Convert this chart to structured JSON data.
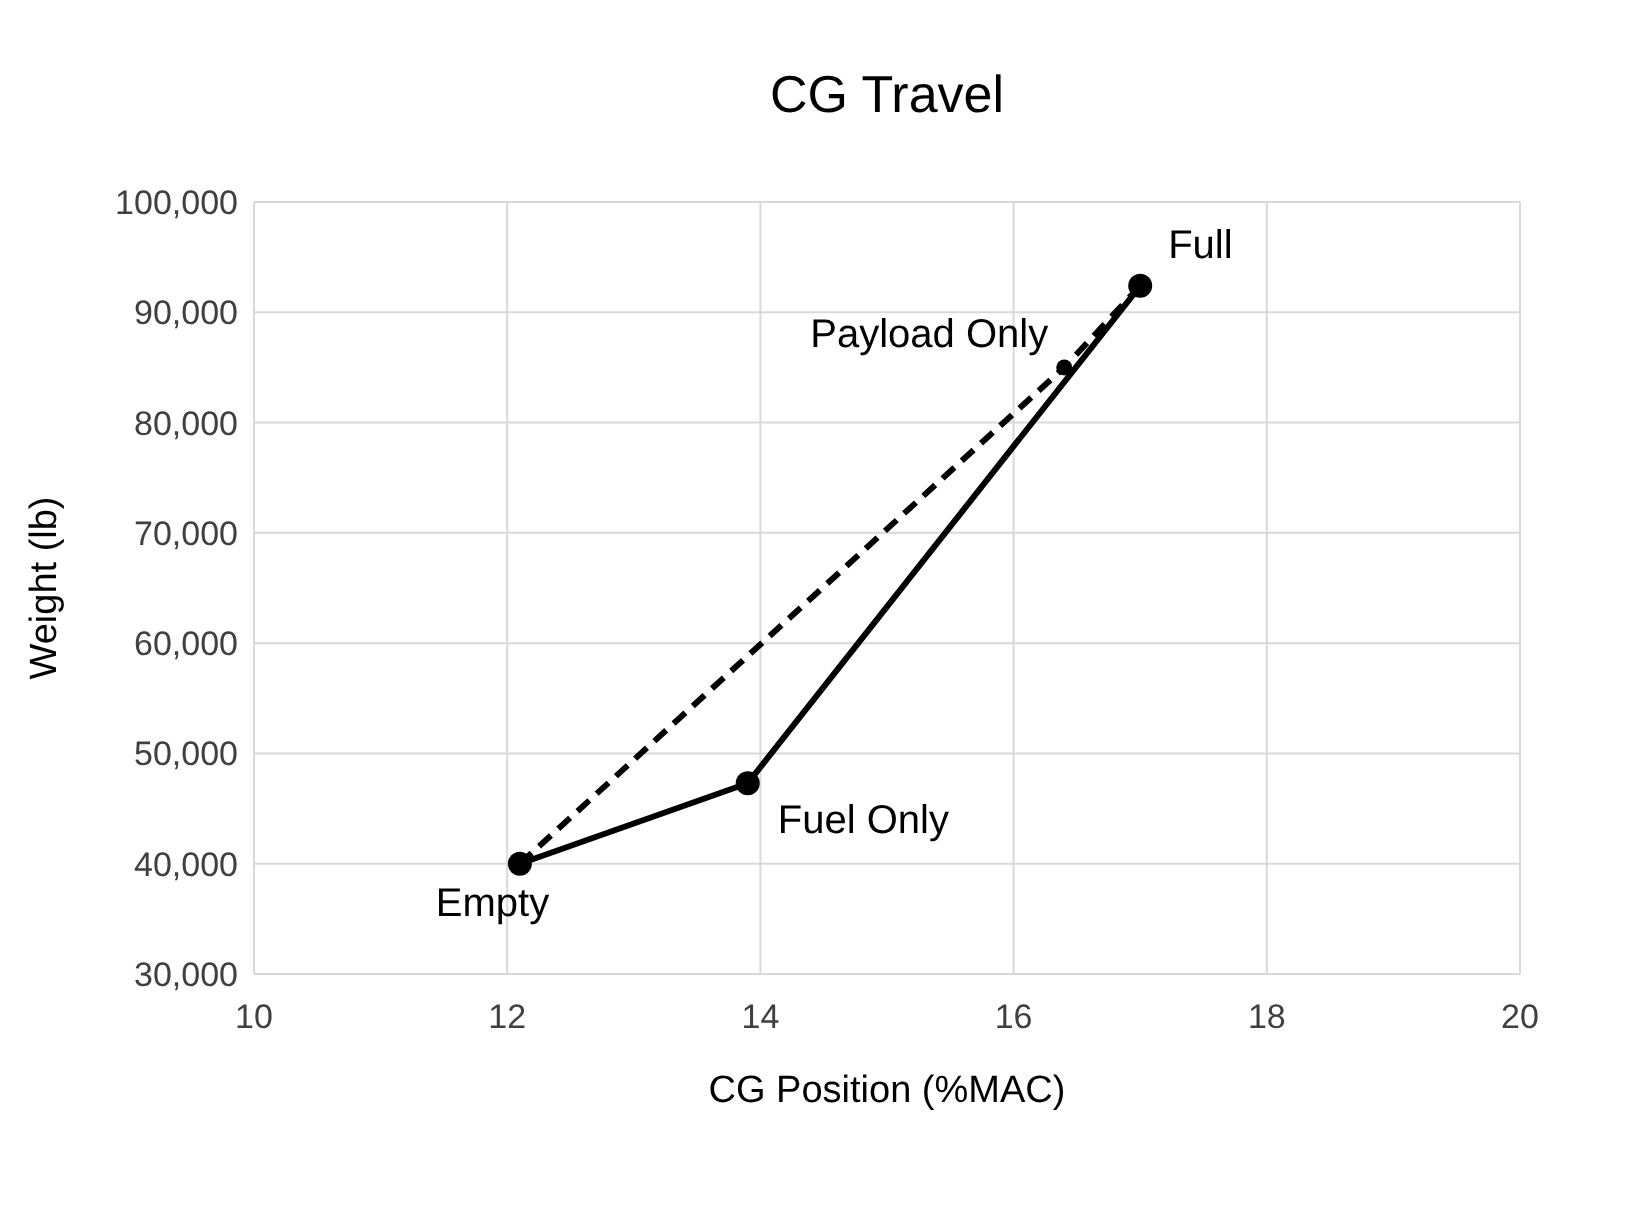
{
  "chart_data": {
    "type": "line",
    "title": "CG Travel",
    "xlabel": "CG Position (%MAC)",
    "ylabel": "Weight (lb)",
    "xlim": [
      10,
      20
    ],
    "xticks": [
      10,
      12,
      14,
      16,
      18,
      20
    ],
    "ylim": [
      30000,
      100000
    ],
    "yticks": [
      {
        "value": 30000,
        "label": "30,000"
      },
      {
        "value": 40000,
        "label": "40,000"
      },
      {
        "value": 50000,
        "label": "50,000"
      },
      {
        "value": 60000,
        "label": "60,000"
      },
      {
        "value": 70000,
        "label": "70,000"
      },
      {
        "value": 80000,
        "label": "80,000"
      },
      {
        "value": 90000,
        "label": "90,000"
      },
      {
        "value": 100000,
        "label": "100,000"
      }
    ],
    "grid": true,
    "marker": "circle",
    "series": [
      {
        "color": "#000000",
        "line_style": "solid",
        "x": [
          12.1,
          13.9,
          17.0
        ],
        "values": [
          40000,
          47300,
          92400
        ]
      },
      {
        "color": "#000000",
        "line_style": "dashed",
        "x": [
          12.1,
          16.4,
          17.0
        ],
        "values": [
          40000,
          85000,
          92400
        ]
      }
    ],
    "annotations": [
      {
        "text": "Empty",
        "x": 12.1,
        "y": 40000
      },
      {
        "text": "Fuel Only",
        "x": 13.9,
        "y": 47300
      },
      {
        "text": "Payload Only",
        "x": 16.4,
        "y": 85000
      },
      {
        "text": "Full",
        "x": 17.0,
        "y": 92400
      }
    ]
  }
}
